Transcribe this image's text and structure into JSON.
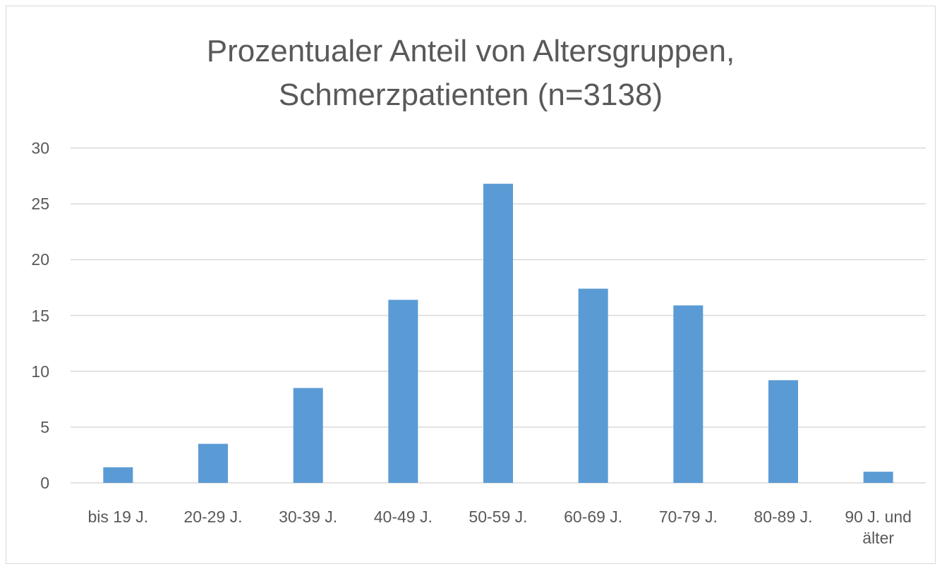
{
  "chart_data": {
    "type": "bar",
    "title": "Prozentualer Anteil von Altersgruppen, Schmerzpatienten (n=3138)",
    "categories": [
      "bis 19 J.",
      "20-29 J.",
      "30-39 J.",
      "40-49 J.",
      "50-59 J.",
      "60-69 J.",
      "70-79 J.",
      "80-89 J.",
      "90 J. und älter"
    ],
    "values": [
      1.4,
      3.5,
      8.5,
      16.4,
      26.8,
      17.4,
      15.9,
      9.2,
      1.0
    ],
    "color": "#5b9bd5",
    "ylim": [
      0,
      30
    ],
    "yticks": [
      0,
      5,
      10,
      15,
      20,
      25,
      30
    ],
    "grid": true
  }
}
